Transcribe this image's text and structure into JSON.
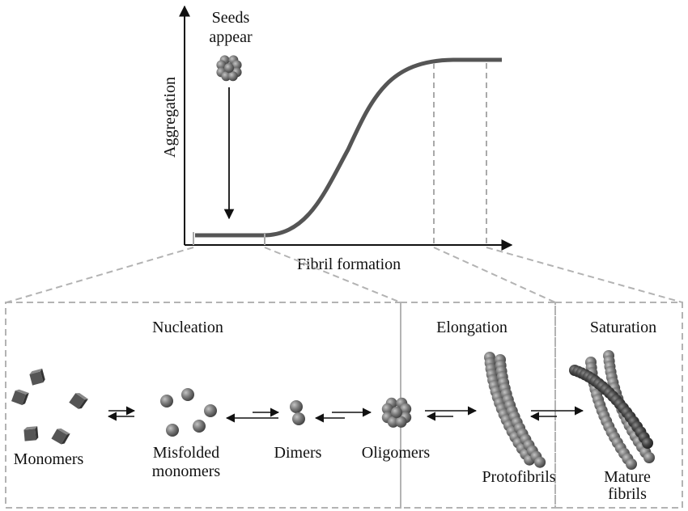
{
  "graph": {
    "y_axis_label": "Aggregation",
    "x_axis_label": "Fibril formation",
    "seeds_label_line1": "Seeds",
    "seeds_label_line2": "appear"
  },
  "stages": {
    "nucleation": "Nucleation",
    "elongation": "Elongation",
    "saturation": "Saturation"
  },
  "species": {
    "monomers": "Monomers",
    "misfolded_line1": "Misfolded",
    "misfolded_line2": "monomers",
    "dimers": "Dimers",
    "oligomers": "Oligomers",
    "protofibrils": "Protofibrils",
    "mature_line1": "Mature",
    "mature_line2": "fibrils"
  },
  "colors": {
    "curve": "#555555",
    "axis": "#111111",
    "dashed_box": "#b3b3b3",
    "sphere": "#6e6e6e",
    "sphere_dark": "#3a3a3a",
    "cube": "#555555"
  }
}
